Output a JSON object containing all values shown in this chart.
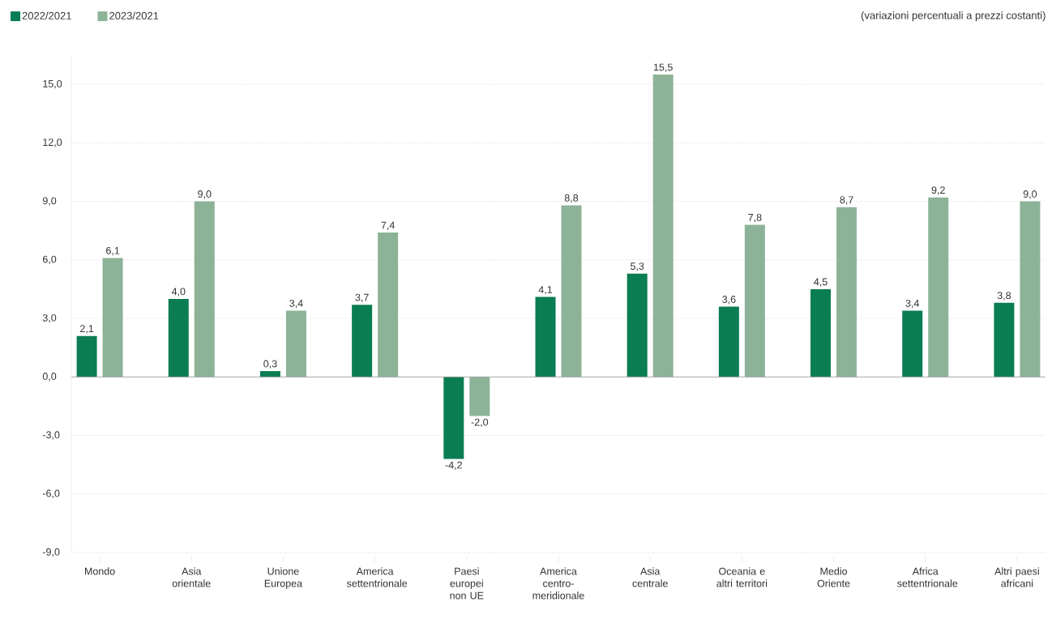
{
  "chart_data": {
    "type": "bar",
    "subtitle": "(variazioni percentuali a prezzi costanti)",
    "categories": [
      "Mondo",
      "Asia orientale",
      "Unione Europea",
      "America settentrionale",
      "Paesi europei non UE",
      "America centro-meridionale",
      "Asia centrale",
      "Oceania e altri territori",
      "Medio Oriente",
      "Africa settentrionale",
      "Altri paesi africani"
    ],
    "series": [
      {
        "name": "2022/2021",
        "color": "#0a7d52",
        "values": [
          2.1,
          4.0,
          0.3,
          3.7,
          -4.2,
          4.1,
          5.3,
          3.6,
          4.5,
          3.4,
          3.8
        ],
        "value_labels": [
          "2,1",
          "4,0",
          "0,3",
          "3,7",
          "-4,2",
          "4,1",
          "5,3",
          "3,6",
          "4,5",
          "3,4",
          "3,8"
        ]
      },
      {
        "name": "2023/2021",
        "color": "#8cb398",
        "values": [
          6.1,
          9.0,
          3.4,
          7.4,
          -2.0,
          8.8,
          15.5,
          7.8,
          8.7,
          9.2,
          9.0
        ],
        "value_labels": [
          "6,1",
          "9,0",
          "3,4",
          "7,4",
          "-2,0",
          "8,8",
          "15,5",
          "7,8",
          "8,7",
          "9,2",
          "9,0"
        ]
      }
    ],
    "ylim": [
      -9,
      16.5
    ],
    "yticks": [
      {
        "value": -9,
        "label": "-9,0"
      },
      {
        "value": -6,
        "label": "-6,0"
      },
      {
        "value": -3,
        "label": "-3,0"
      },
      {
        "value": 0,
        "label": "0,0"
      },
      {
        "value": 3,
        "label": "3,0"
      },
      {
        "value": 6,
        "label": "6,0"
      },
      {
        "value": 9,
        "label": "9,0"
      },
      {
        "value": 12,
        "label": "12,0"
      },
      {
        "value": 15,
        "label": "15,0"
      }
    ],
    "grid": "y",
    "legend": "top left"
  }
}
